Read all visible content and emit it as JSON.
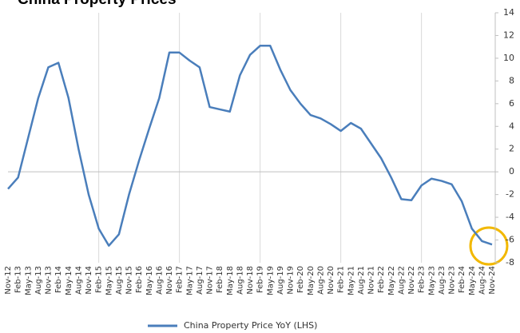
{
  "chart_data": {
    "type": "line",
    "title": "China Property Prices",
    "categories": [
      "Nov-12",
      "Feb-13",
      "May-13",
      "Aug-13",
      "Nov-13",
      "Feb-14",
      "May-14",
      "Aug-14",
      "Nov-14",
      "Feb-15",
      "May-15",
      "Aug-15",
      "Nov-15",
      "Feb-16",
      "May-16",
      "Aug-16",
      "Nov-16",
      "Feb-17",
      "May-17",
      "Aug-17",
      "Nov-17",
      "Feb-18",
      "May-18",
      "Aug-18",
      "Nov-18",
      "Feb-19",
      "May-19",
      "Aug-19",
      "Nov-19",
      "Feb-20",
      "May-20",
      "Aug-20",
      "Nov-20",
      "Feb-21",
      "May-21",
      "Aug-21",
      "Nov-21",
      "Feb-22",
      "May-22",
      "Aug-22",
      "Nov-22",
      "Feb-23",
      "May-23",
      "Aug-23",
      "Nov-23",
      "Feb-24",
      "May-24",
      "Aug-24",
      "Nov-24"
    ],
    "series": [
      {
        "name": "China Property Price YoY (LHS)",
        "color": "#4a7ebb",
        "values": [
          -1.5,
          -0.5,
          3.0,
          6.5,
          9.2,
          9.6,
          6.5,
          2.0,
          -2.0,
          -5.0,
          -6.5,
          -5.5,
          -2.0,
          1.0,
          3.8,
          6.5,
          10.5,
          10.5,
          9.8,
          9.2,
          5.7,
          5.5,
          5.3,
          8.5,
          10.3,
          11.1,
          11.1,
          9.0,
          7.2,
          6.0,
          5.0,
          4.7,
          4.2,
          3.6,
          4.3,
          3.8,
          2.5,
          1.2,
          -0.5,
          -2.4,
          -2.5,
          -1.2,
          -0.6,
          -0.8,
          -1.1,
          -2.6,
          -5.0,
          -6.1,
          -6.4
        ]
      }
    ],
    "ylim": [
      -8,
      14
    ],
    "yticks": [
      -8,
      -6,
      -4,
      -2,
      0,
      2,
      4,
      6,
      8,
      10,
      12,
      14
    ],
    "legend": "bottom"
  }
}
